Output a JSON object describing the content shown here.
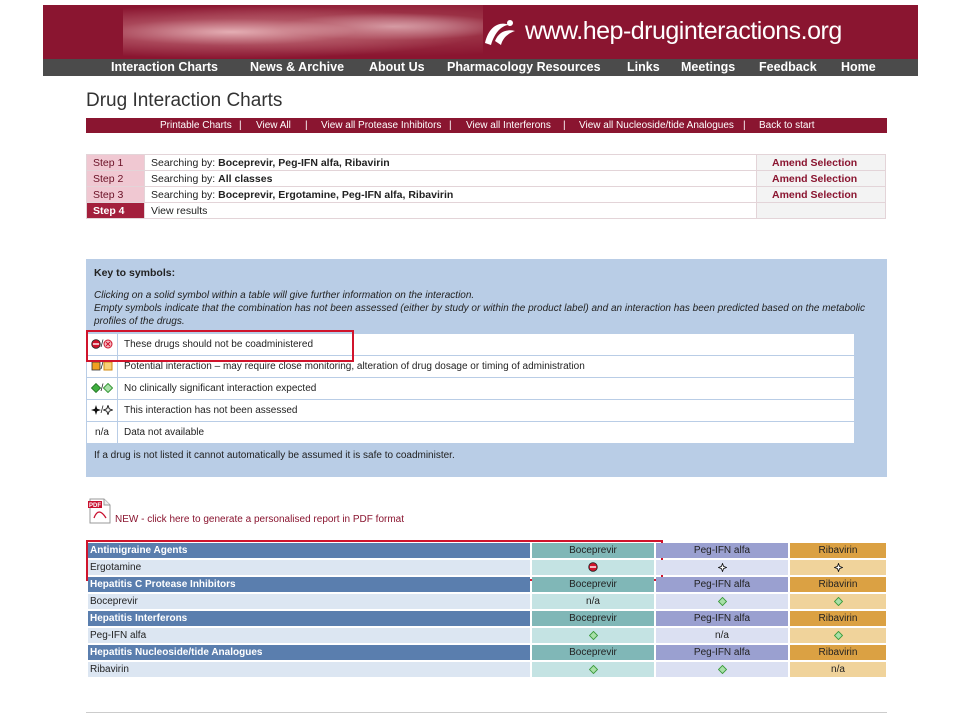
{
  "site": {
    "url": "www.hep-druginteractions.org"
  },
  "nav": [
    "Interaction Charts",
    "News & Archive",
    "About Us",
    "Pharmacology Resources",
    "Links",
    "Meetings",
    "Feedback",
    "Home"
  ],
  "page_title": "Drug Interaction Charts",
  "subnav": [
    "Printable Charts",
    "View All",
    "View all Protease Inhibitors",
    "View all Interferons",
    "View all Nucleoside/tide Analogues",
    "Back to start"
  ],
  "subnav_sep": "|",
  "steps": [
    {
      "label": "Step 1",
      "prefix": "Searching by: ",
      "value": "Boceprevir, Peg-IFN alfa, Ribavirin",
      "action": "Amend Selection"
    },
    {
      "label": "Step 2",
      "prefix": "Searching by: ",
      "value": "All classes",
      "action": "Amend Selection"
    },
    {
      "label": "Step 3",
      "prefix": "Searching by: ",
      "value": "Boceprevir, Ergotamine, Peg-IFN alfa, Ribavirin",
      "action": "Amend Selection"
    },
    {
      "label": "Step 4",
      "prefix": "View results",
      "value": "",
      "action": ""
    }
  ],
  "key": {
    "title": "Key to symbols:",
    "para1": "Clicking on a solid symbol within a table will give further information on the interaction.",
    "para2": "Empty symbols indicate that the combination has not been assessed (either by study or within the product label) and an interaction has been predicted based on the metabolic profiles of the drugs.",
    "rows": [
      {
        "symbol": "red-circle",
        "sep": "/",
        "text": "These drugs should not be coadministered"
      },
      {
        "symbol": "amber-square",
        "sep": "/",
        "text": "Potential interaction – may require close monitoring, alteration of drug dosage or timing of administration"
      },
      {
        "symbol": "green-diamond",
        "sep": "/",
        "text": "No clinically significant interaction expected"
      },
      {
        "symbol": "black-star",
        "sep": "/",
        "text": "This interaction has not been assessed"
      },
      {
        "symbol": "na",
        "sep": "",
        "symbol_text": "n/a",
        "text": "Data not available"
      }
    ],
    "note": "If a drug is not listed it cannot automatically be assumed it is safe to coadminister."
  },
  "pdf": {
    "icon_text": "PDF",
    "link": "NEW - click here to generate a personalised report in PDF format"
  },
  "columns": [
    "Boceprevir",
    "Peg-IFN alfa",
    "Ribavirin"
  ],
  "groups": [
    {
      "name": "Antimigraine Agents",
      "drug": "Ergotamine",
      "cells": [
        "red-circle",
        "black-star",
        "black-star"
      ]
    },
    {
      "name": "Hepatitis C Protease Inhibitors",
      "drug": "Boceprevir",
      "cells": [
        "n/a",
        "green-diamond",
        "green-diamond"
      ]
    },
    {
      "name": "Hepatitis Interferons",
      "drug": "Peg-IFN alfa",
      "cells": [
        "green-diamond",
        "n/a",
        "green-diamond"
      ]
    },
    {
      "name": "Hepatitis Nucleoside/tide Analogues",
      "drug": "Ribavirin",
      "cells": [
        "green-diamond",
        "green-diamond",
        "n/a"
      ]
    }
  ],
  "colors": {
    "brand": "#8a1530",
    "nav": "#4b4b4b",
    "key_bg": "#b9cde6",
    "highlight": "#d0142c"
  }
}
